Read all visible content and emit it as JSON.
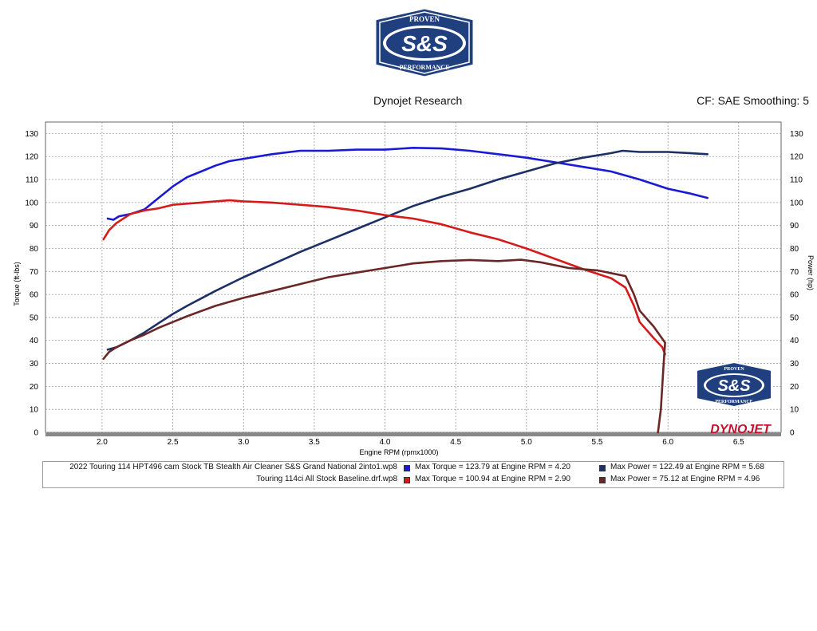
{
  "header": {
    "company": "Dynojet Research",
    "settings": "CF: SAE Smoothing: 5"
  },
  "logo": {
    "top_text": "PROVEN",
    "main_text": "S&S",
    "bottom_text": "PERFORMANCE",
    "watermark_brand": "DYNOJET",
    "colors": {
      "navy": "#1f3f7f",
      "white": "#ffffff",
      "red": "#c8102e"
    }
  },
  "legend": {
    "rows": [
      {
        "name": "2022 Touring 114 HPT496 cam Stock TB  Stealth Air Cleaner S&S Grand National 2into1.wp8",
        "torque_text": "Max Torque = 123.79 at Engine RPM = 4.20",
        "power_text": "Max Power = 122.49 at Engine RPM = 5.68",
        "torque_color": "#1a1ad6",
        "power_color": "#1c2f66"
      },
      {
        "name": "Touring 114ci All Stock Baseline.drf.wp8",
        "torque_text": "Max Torque = 100.94 at Engine RPM = 2.90",
        "power_text": "Max Power = 75.12 at Engine RPM = 4.96",
        "torque_color": "#d61a1a",
        "power_color": "#6b2626"
      }
    ]
  },
  "chart_data": {
    "type": "line",
    "xlabel": "Engine RPM (rpmx1000)",
    "ylabel_left": "Torque (ft-lbs)",
    "ylabel_right": "Power (hp)",
    "xlim": [
      1.6,
      6.8
    ],
    "ylim": [
      0,
      135
    ],
    "x_ticks": [
      "2.0",
      "2.5",
      "3.0",
      "3.5",
      "4.0",
      "4.5",
      "5.0",
      "5.5",
      "6.0",
      "6.5"
    ],
    "y_ticks": [
      "0",
      "10",
      "20",
      "30",
      "40",
      "50",
      "60",
      "70",
      "80",
      "90",
      "100",
      "110",
      "120",
      "130"
    ],
    "grid": true,
    "series": [
      {
        "name": "Max Torque = 123.79 at Engine RPM = 4.20",
        "color": "#1a1ad6",
        "x": [
          2.04,
          2.08,
          2.12,
          2.2,
          2.3,
          2.4,
          2.5,
          2.6,
          2.7,
          2.8,
          2.9,
          3.0,
          3.2,
          3.4,
          3.6,
          3.8,
          4.0,
          4.2,
          4.4,
          4.6,
          4.8,
          5.0,
          5.2,
          5.4,
          5.6,
          5.8,
          6.0,
          6.15,
          6.28
        ],
        "y": [
          93,
          92.5,
          94,
          95,
          97,
          102,
          107,
          111,
          113.5,
          116,
          118,
          119,
          121,
          122.5,
          122.5,
          123,
          123,
          123.8,
          123.5,
          122.5,
          121,
          119.5,
          117.5,
          115.5,
          113.5,
          110,
          106,
          104,
          102
        ]
      },
      {
        "name": "Max Power = 122.49 at Engine RPM = 5.68",
        "color": "#1c2f66",
        "x": [
          2.04,
          2.1,
          2.2,
          2.3,
          2.4,
          2.5,
          2.6,
          2.8,
          3.0,
          3.2,
          3.4,
          3.6,
          3.8,
          4.0,
          4.2,
          4.4,
          4.6,
          4.8,
          5.0,
          5.2,
          5.4,
          5.6,
          5.68,
          5.8,
          6.0,
          6.15,
          6.28
        ],
        "y": [
          36,
          37,
          40,
          43.5,
          47.5,
          51.5,
          55,
          61.5,
          67.5,
          73,
          78.5,
          83.5,
          88.5,
          93.5,
          98.5,
          102.5,
          106,
          110,
          113.5,
          117,
          119.5,
          121.5,
          122.5,
          122,
          122,
          121.5,
          121
        ]
      },
      {
        "name": "Max Torque = 100.94 at Engine RPM = 2.90",
        "color": "#d61a1a",
        "x": [
          2.01,
          2.05,
          2.1,
          2.2,
          2.3,
          2.4,
          2.5,
          2.6,
          2.7,
          2.8,
          2.9,
          3.0,
          3.2,
          3.4,
          3.6,
          3.8,
          4.0,
          4.2,
          4.4,
          4.6,
          4.8,
          5.0,
          5.2,
          5.4,
          5.6,
          5.7,
          5.76,
          5.8,
          5.9,
          5.96,
          5.98
        ],
        "y": [
          84,
          88,
          91,
          95,
          96.5,
          97.5,
          99,
          99.5,
          100,
          100.5,
          100.94,
          100.5,
          100,
          99,
          98,
          96.5,
          94.5,
          93,
          90.5,
          87,
          84,
          80,
          75.5,
          71,
          67,
          63,
          55,
          48,
          41,
          37,
          34
        ]
      },
      {
        "name": "Max Power = 75.12 at Engine RPM = 4.96",
        "color": "#6b2626",
        "x": [
          2.01,
          2.05,
          2.1,
          2.2,
          2.3,
          2.4,
          2.5,
          2.6,
          2.8,
          3.0,
          3.2,
          3.4,
          3.6,
          3.8,
          4.0,
          4.2,
          4.4,
          4.6,
          4.8,
          4.96,
          5.1,
          5.3,
          5.5,
          5.7,
          5.76,
          5.8,
          5.9,
          5.98,
          5.97,
          5.95,
          5.93
        ],
        "y": [
          32,
          35,
          37,
          40,
          42.5,
          45.5,
          48,
          50.5,
          55,
          58.5,
          61.5,
          64.5,
          67.5,
          69.5,
          71.5,
          73.5,
          74.5,
          75,
          74.5,
          75.1,
          74,
          71.5,
          70.5,
          68,
          60,
          53,
          46,
          39,
          30,
          10,
          0
        ]
      }
    ]
  }
}
